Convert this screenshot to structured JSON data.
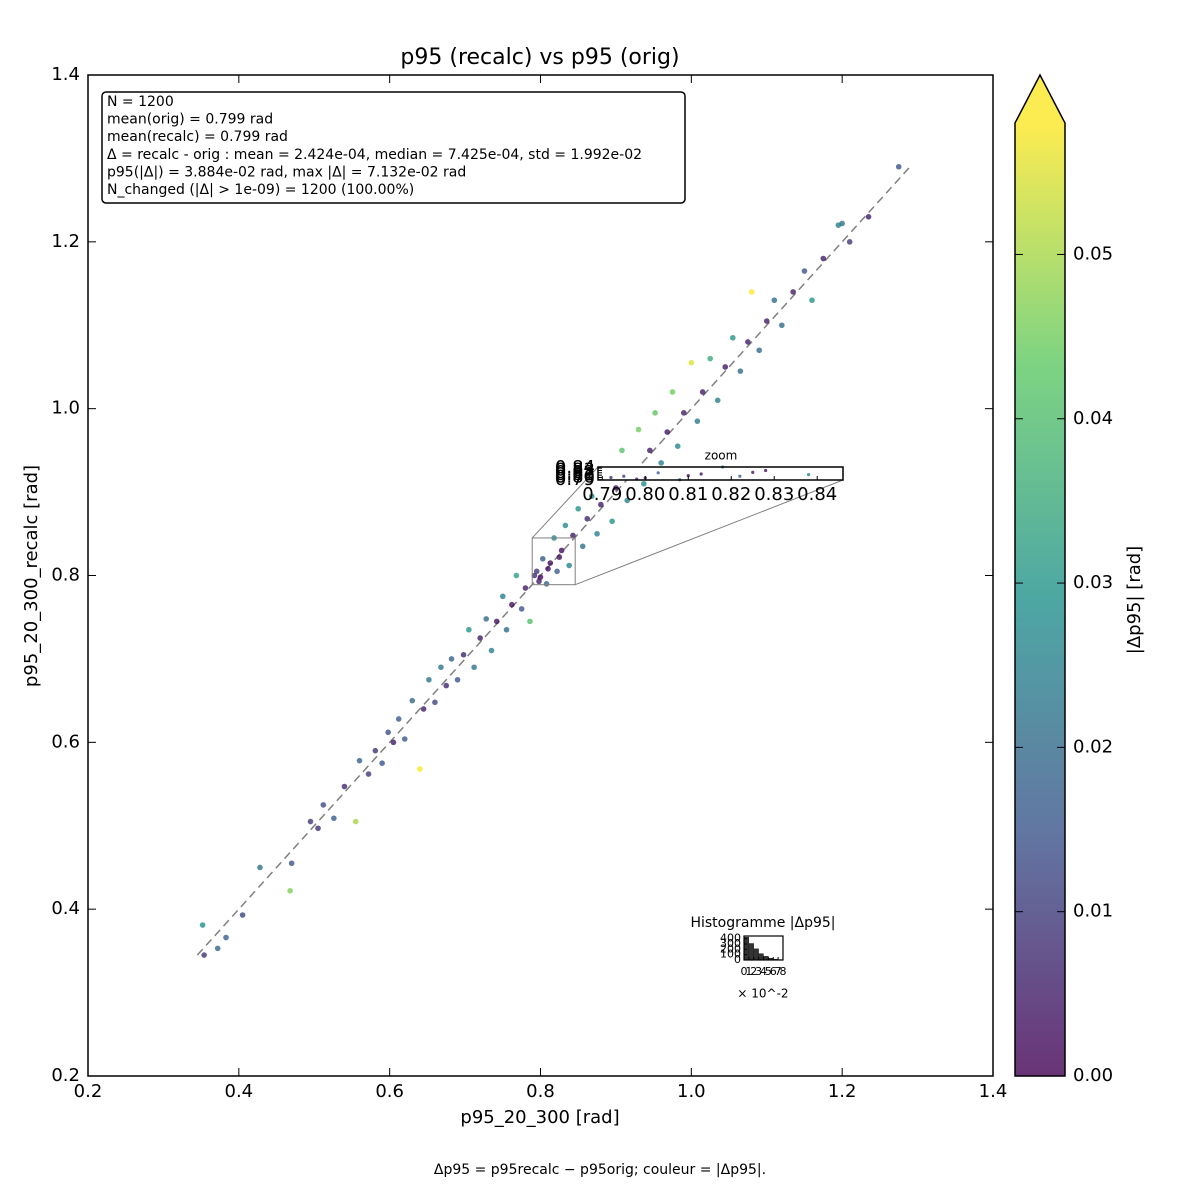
{
  "chart_data": {
    "type": "scatter",
    "title": "p95 (recalc) vs p95 (orig)",
    "xlabel": "p95_20_300 [rad]",
    "ylabel": "p95_20_300_recalc [rad]",
    "xlim": [
      0.2,
      1.4
    ],
    "ylim": [
      0.2,
      1.4
    ],
    "xticks": [
      0.2,
      0.4,
      0.6,
      0.8,
      {
        "value": 1.0,
        "label": "1.0"
      },
      1.2,
      1.4
    ],
    "yticks": [
      0.2,
      0.4,
      0.6,
      0.8,
      {
        "value": 1.0,
        "label": "1.0"
      },
      1.2,
      1.4
    ],
    "x": [
      0.352,
      0.354,
      0.372,
      0.383,
      0.405,
      0.428,
      0.468,
      0.47,
      0.495,
      0.505,
      0.512,
      0.526,
      0.54,
      0.555,
      0.56,
      0.572,
      0.581,
      0.59,
      0.598,
      0.605,
      0.612,
      0.62,
      0.63,
      0.64,
      0.645,
      0.652,
      0.66,
      0.668,
      0.675,
      0.682,
      0.69,
      0.698,
      0.705,
      0.712,
      0.72,
      0.728,
      0.735,
      0.742,
      0.75,
      0.755,
      0.762,
      0.768,
      0.775,
      0.78,
      0.786,
      0.792,
      0.798,
      0.803,
      0.808,
      0.813,
      0.818,
      0.822,
      0.828,
      0.833,
      0.838,
      0.843,
      0.85,
      0.856,
      0.862,
      0.868,
      0.875,
      0.88,
      0.888,
      0.895,
      0.9,
      0.908,
      0.915,
      0.922,
      0.93,
      0.937,
      0.945,
      0.952,
      0.96,
      0.968,
      0.975,
      0.982,
      0.99,
      1.0,
      1.008,
      1.015,
      1.025,
      1.035,
      1.045,
      1.055,
      1.065,
      1.075,
      1.08,
      1.09,
      1.1,
      1.11,
      1.12,
      1.135,
      1.15,
      1.16,
      1.175,
      1.195,
      1.21,
      1.235,
      1.275,
      1.2,
      0.795,
      0.81,
      0.825,
      0.8
    ],
    "y": [
      0.381,
      0.345,
      0.353,
      0.366,
      0.393,
      0.45,
      0.422,
      0.455,
      0.505,
      0.497,
      0.525,
      0.509,
      0.547,
      0.505,
      0.578,
      0.562,
      0.59,
      0.575,
      0.612,
      0.6,
      0.628,
      0.604,
      0.65,
      0.568,
      0.64,
      0.675,
      0.648,
      0.69,
      0.668,
      0.7,
      0.675,
      0.705,
      0.735,
      0.69,
      0.725,
      0.748,
      0.71,
      0.745,
      0.775,
      0.735,
      0.765,
      0.8,
      0.76,
      0.785,
      0.745,
      0.8,
      0.793,
      0.82,
      0.79,
      0.815,
      0.845,
      0.805,
      0.83,
      0.86,
      0.812,
      0.848,
      0.88,
      0.835,
      0.868,
      0.895,
      0.85,
      0.885,
      0.918,
      0.865,
      0.905,
      0.95,
      0.89,
      0.925,
      0.975,
      0.91,
      0.95,
      0.995,
      0.935,
      0.972,
      1.02,
      0.955,
      0.995,
      1.055,
      0.985,
      1.02,
      1.06,
      1.01,
      1.05,
      1.085,
      1.045,
      1.08,
      1.14,
      1.07,
      1.105,
      1.13,
      1.1,
      1.14,
      1.165,
      1.13,
      1.18,
      1.22,
      1.2,
      1.23,
      1.29,
      1.222,
      0.805,
      0.808,
      0.822,
      0.798
    ],
    "color_values": [
      0.029,
      0.009,
      0.019,
      0.017,
      0.012,
      0.022,
      0.046,
      0.015,
      0.01,
      0.008,
      0.013,
      0.017,
      0.007,
      0.05,
      0.018,
      0.01,
      0.009,
      0.015,
      0.014,
      0.005,
      0.016,
      0.016,
      0.02,
      0.071,
      0.005,
      0.023,
      0.012,
      0.022,
      0.007,
      0.018,
      0.015,
      0.007,
      0.03,
      0.022,
      0.005,
      0.02,
      0.025,
      0.003,
      0.025,
      0.02,
      0.003,
      0.032,
      0.015,
      0.005,
      0.041,
      0.008,
      0.005,
      0.017,
      0.018,
      0.002,
      0.027,
      0.017,
      0.002,
      0.027,
      0.026,
      0.005,
      0.03,
      0.021,
      0.006,
      0.027,
      0.025,
      0.005,
      0.03,
      0.03,
      0.005,
      0.042,
      0.025,
      0.003,
      0.045,
      0.027,
      0.005,
      0.043,
      0.025,
      0.004,
      0.045,
      0.027,
      0.005,
      0.055,
      0.023,
      0.005,
      0.035,
      0.025,
      0.005,
      0.03,
      0.02,
      0.005,
      0.058,
      0.02,
      0.005,
      0.02,
      0.02,
      0.005,
      0.015,
      0.03,
      0.005,
      0.025,
      0.01,
      0.005,
      0.015,
      0.022,
      0.01,
      0.002,
      0.003,
      0.002
    ],
    "colormap": "viridis",
    "clim": [
      0,
      0.058
    ],
    "colorbar_extend": "max",
    "colorbar_label": "|Δp95| [rad]",
    "colorbar_ticks": [
      {
        "value": 0,
        "label": "0.00"
      },
      0.01,
      0.02,
      0.03,
      0.04,
      0.05
    ],
    "diagonal": {
      "x": [
        0.345,
        1.29
      ],
      "y": [
        0.345,
        1.29
      ],
      "color": "#808080"
    },
    "stats_lines": [
      "N = 1200",
      "mean(orig) = 0.799 rad",
      "mean(recalc) = 0.799 rad",
      "Δ = recalc - orig : mean = 2.424e-04, median = 7.425e-04, std = 1.992e-02",
      "p95(|Δ|) = 3.884e-02 rad, max |Δ| = 7.132e-02 rad",
      "N_changed (|Δ| > 1e-09) = 1200 (100.00%)"
    ],
    "caption": "Δp95 = p95recalc − p95orig; couleur = |Δp95|.",
    "zoom": {
      "title": "zoom",
      "xlim": [
        0.789,
        0.846
      ],
      "ylim": [
        0.789,
        0.845
      ],
      "xticks": [
        0.79,
        {
          "value": 0.8,
          "label": "0.80"
        },
        0.81,
        0.82,
        0.83,
        0.84
      ],
      "yticks": [
        0.79,
        {
          "value": 0.8,
          "label": "0.80"
        },
        0.81,
        0.82,
        0.83,
        0.84
      ]
    },
    "histogram": {
      "title": "Histogramme |Δp95|",
      "bins": [
        0,
        1,
        2,
        3,
        4,
        5,
        6,
        7,
        8
      ],
      "counts": [
        430,
        310,
        210,
        120,
        70,
        35,
        17,
        8
      ],
      "xlim": [
        0,
        8
      ],
      "ylim": [
        0,
        450
      ],
      "xticks": [
        0,
        1,
        2,
        3,
        4,
        5,
        6,
        7,
        8
      ],
      "yticks": [
        0,
        100,
        200,
        300,
        400
      ],
      "multiplier_label": "× 10^-2"
    }
  }
}
